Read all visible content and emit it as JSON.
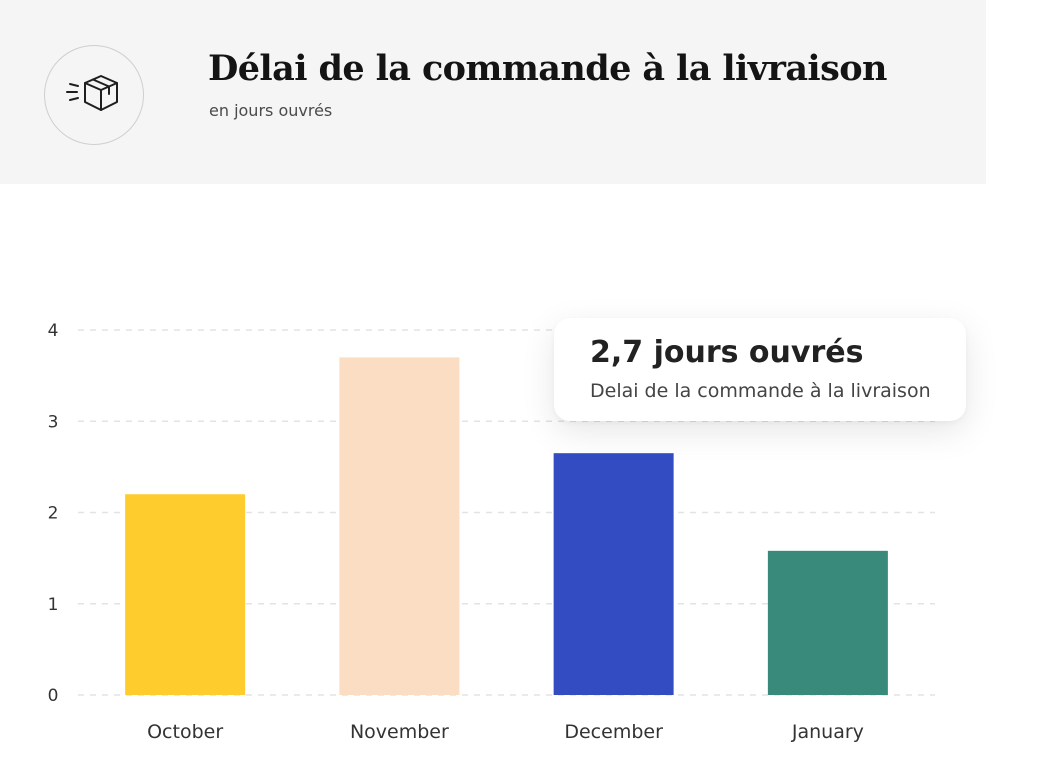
{
  "header": {
    "title": "Délai de la commande à la livraison",
    "subtitle": "en jours ouvrés",
    "icon": "package-delivery-icon"
  },
  "tooltip": {
    "value": "2,7 jours ouvrés",
    "label": "Delai de la commande à la livraison"
  },
  "chart_data": {
    "type": "bar",
    "title": "Délai de la commande à la livraison",
    "subtitle": "en jours ouvrés",
    "categories": [
      "October",
      "November",
      "December",
      "January"
    ],
    "values": [
      2.2,
      3.7,
      2.65,
      1.58
    ],
    "colors": [
      "#FFCC2E",
      "#FBDDC4",
      "#344CC2",
      "#398A7B"
    ],
    "yticks": [
      0,
      1,
      2,
      3,
      4
    ],
    "ylim": [
      0,
      4
    ],
    "grid": true,
    "grid_style": "dashed",
    "xlabel": "",
    "ylabel": "",
    "tooltip_category": "December"
  }
}
